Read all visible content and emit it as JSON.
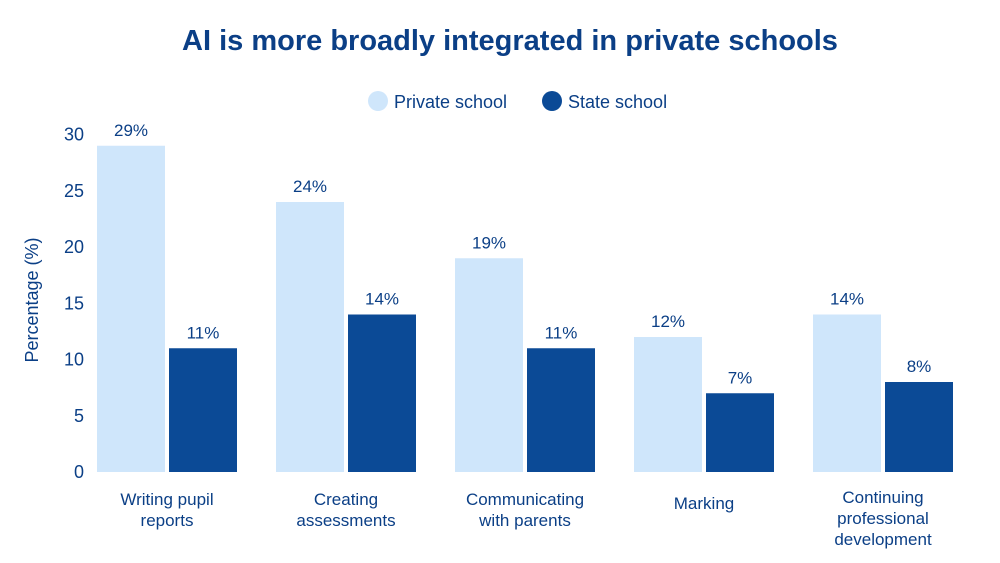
{
  "chart_data": {
    "type": "bar",
    "title": "AI is more broadly integrated in private schools",
    "ylabel": "Percentage (%)",
    "xlabel": "",
    "ylim": [
      0,
      30
    ],
    "yticks": [
      0,
      5,
      10,
      15,
      20,
      25,
      30
    ],
    "legend_position": "top",
    "grid": false,
    "categories": [
      [
        "Writing pupil",
        "reports"
      ],
      [
        "Creating",
        "assessments"
      ],
      [
        "Communicating",
        "with parents"
      ],
      [
        "Marking"
      ],
      [
        "Continuing",
        "professional",
        "development"
      ]
    ],
    "series": [
      {
        "name": "Private school",
        "color": "#cfe6fb",
        "values": [
          29,
          24,
          19,
          12,
          14
        ],
        "labels": [
          "29%",
          "24%",
          "19%",
          "12%",
          "14%"
        ]
      },
      {
        "name": "State school",
        "color": "#0b4a96",
        "values": [
          11,
          14,
          11,
          7,
          8
        ],
        "labels": [
          "11%",
          "14%",
          "11%",
          "7%",
          "8%"
        ]
      }
    ]
  }
}
